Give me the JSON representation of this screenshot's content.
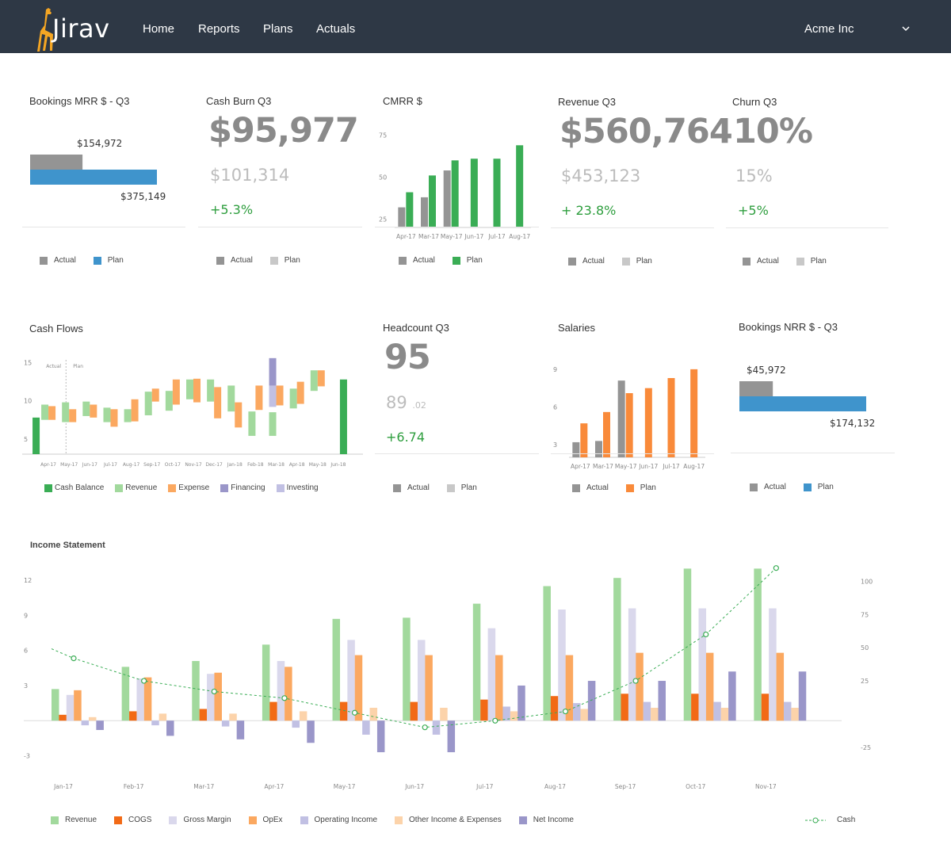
{
  "app": {
    "name": "Jirav",
    "company": "Acme Inc"
  },
  "nav": {
    "items": [
      "Home",
      "Reports",
      "Plans",
      "Actuals"
    ]
  },
  "colors": {
    "nav_bg": "#2e3845",
    "actual": "#949494",
    "plan_blue": "#3f94cc",
    "plan_light": "#c8c8c8",
    "green": "#3aad55",
    "orange": "#f98a3a",
    "delta": "#2e9e3e"
  },
  "cards": {
    "bookings_mrr": {
      "title": "Bookings MRR $ - Q3",
      "actual": "$154,972",
      "plan": "$375,149",
      "legend": [
        "Actual",
        "Plan"
      ]
    },
    "cash_burn": {
      "title": "Cash Burn Q3",
      "value": "$95,977",
      "plan": "$101,314",
      "delta": "+5.3%",
      "legend": [
        "Actual",
        "Plan"
      ]
    },
    "cmrr": {
      "title": "CMRR $",
      "legend": [
        "Actual",
        "Plan"
      ]
    },
    "revenue": {
      "title": "Revenue Q3",
      "value": "$560,764",
      "plan": "$453,123",
      "delta": "+ 23.8%",
      "legend": [
        "Actual",
        "Plan"
      ]
    },
    "churn": {
      "title": "Churn Q3",
      "value": "10%",
      "plan": "15%",
      "delta": "+5%",
      "legend": [
        "Actual",
        "Plan"
      ]
    },
    "cash_flows": {
      "title": "Cash Flows",
      "actual_marker": "Actual",
      "plan_marker": "Plan",
      "legend": [
        "Cash Balance",
        "Revenue",
        "Expense",
        "Financing",
        "Investing"
      ]
    },
    "headcount": {
      "title": "Headcount Q3",
      "value": "95",
      "plan": "89",
      "plan_suffix": ".02",
      "delta": "+6.74",
      "legend": [
        "Actual",
        "Plan"
      ]
    },
    "salaries": {
      "title": "Salaries",
      "legend": [
        "Actual",
        "Plan"
      ]
    },
    "bookings_nrr": {
      "title": "Bookings NRR $ - Q3",
      "actual": "$45,972",
      "plan": "$174,132",
      "legend": [
        "Actual",
        "Plan"
      ]
    },
    "income_statement": {
      "title": "Income Statement",
      "legend": [
        "Revenue",
        "COGS",
        "Gross Margin",
        "OpEx",
        "Operating Income",
        "Other Income & Expenses",
        "Net Income"
      ],
      "cash_legend": "Cash"
    }
  },
  "chart_data": [
    {
      "id": "bookings_mrr",
      "type": "bar",
      "orientation": "horizontal",
      "categories": [
        "Actual",
        "Plan"
      ],
      "values": [
        154972,
        375149
      ],
      "title": "Bookings MRR $ - Q3"
    },
    {
      "id": "cmrr",
      "type": "bar",
      "title": "CMRR $",
      "categories": [
        "Apr-17",
        "Mar-17",
        "May-17",
        "Jun-17",
        "Jul-17",
        "Aug-17"
      ],
      "yticks": [
        "25",
        "50",
        "75"
      ],
      "ylim": [
        20,
        80
      ],
      "series": [
        {
          "name": "Actual",
          "values": [
            32,
            38,
            54,
            null,
            null,
            null
          ]
        },
        {
          "name": "Plan",
          "values": [
            41,
            51,
            60,
            61,
            61,
            69
          ]
        }
      ]
    },
    {
      "id": "cash_flows",
      "type": "bar",
      "subtype": "waterfall",
      "title": "Cash Flows",
      "ylim": [
        3,
        16
      ],
      "yticks": [
        "5",
        "10",
        "15"
      ],
      "categories": [
        "Apr-17",
        "May-17",
        "Jun-17",
        "Jul-17",
        "Aug-17",
        "Sep-17",
        "Oct-17",
        "Nov-17",
        "Dec-17",
        "Jan-18",
        "Feb-18",
        "Mar-18",
        "Apr-18",
        "May-18",
        "Jun-18"
      ],
      "series": [
        {
          "name": "Cash Balance",
          "values": [
            7.8,
            null,
            null,
            null,
            null,
            null,
            null,
            null,
            null,
            null,
            null,
            null,
            null,
            null,
            12.8
          ]
        },
        {
          "name": "Revenue",
          "values": [
            [
              7.5,
              9.5
            ],
            [
              7.2,
              9.8
            ],
            [
              8.0,
              9.9
            ],
            [
              7.2,
              9.1
            ],
            [
              7.2,
              8.9
            ],
            [
              8.1,
              11.2
            ],
            [
              8.7,
              11.3
            ],
            [
              10.2,
              12.8
            ],
            [
              9.9,
              12.8
            ],
            [
              8.6,
              12.0
            ],
            [
              5.4,
              8.6
            ],
            [
              5.4,
              8.5
            ],
            [
              9.0,
              11.6
            ],
            [
              11.3,
              14.0
            ],
            null
          ]
        },
        {
          "name": "Expense",
          "values": [
            [
              7.5,
              9.3
            ],
            [
              7.2,
              8.9
            ],
            [
              7.8,
              9.5
            ],
            [
              6.6,
              8.9
            ],
            [
              7.3,
              10.2
            ],
            [
              9.9,
              11.6
            ],
            [
              9.5,
              12.8
            ],
            [
              9.8,
              12.9
            ],
            [
              7.7,
              11.8
            ],
            [
              6.5,
              9.8
            ],
            [
              8.8,
              12.0
            ],
            [
              9.4,
              12.0
            ],
            [
              9.6,
              12.5
            ],
            [
              11.9,
              14.0
            ],
            null
          ]
        },
        {
          "name": "Financing",
          "values": [
            null,
            null,
            null,
            null,
            null,
            null,
            null,
            null,
            null,
            null,
            null,
            [
              12.0,
              15.6
            ],
            null,
            null,
            null
          ]
        },
        {
          "name": "Investing",
          "values": [
            null,
            null,
            null,
            null,
            null,
            null,
            null,
            null,
            null,
            null,
            null,
            [
              9.2,
              12.0
            ],
            null,
            null,
            null
          ]
        }
      ]
    },
    {
      "id": "salaries",
      "type": "bar",
      "title": "Salaries",
      "categories": [
        "Apr-17",
        "Mar-17",
        "May-17",
        "Jun-17",
        "Jul-17",
        "Aug-17"
      ],
      "yticks": [
        "3",
        "6",
        "9"
      ],
      "ylim": [
        2,
        10
      ],
      "series": [
        {
          "name": "Actual",
          "values": [
            3.2,
            3.3,
            8.1,
            null,
            null,
            null
          ]
        },
        {
          "name": "Plan",
          "values": [
            4.7,
            5.6,
            7.1,
            7.5,
            8.3,
            9.0
          ]
        }
      ]
    },
    {
      "id": "bookings_nrr",
      "type": "bar",
      "orientation": "horizontal",
      "categories": [
        "Actual",
        "Plan"
      ],
      "values": [
        45972,
        174132
      ],
      "title": "Bookings NRR $ - Q3"
    },
    {
      "id": "income_statement",
      "type": "bar",
      "title": "Income Statement",
      "categories": [
        "Jan-17",
        "Feb-17",
        "Mar-17",
        "Apr-17",
        "May-17",
        "Jun-17",
        "Jul-17",
        "Aug-17",
        "Sep-17",
        "Oct-17",
        "Nov-17"
      ],
      "yticks_left": [
        "-3",
        "3",
        "6",
        "9",
        "12"
      ],
      "yticks_right": [
        "-25",
        "25",
        "50",
        "75",
        "100"
      ],
      "ylim_left": [
        -5,
        13.5
      ],
      "ylim_right": [
        -49,
        114
      ],
      "series": [
        {
          "name": "Revenue",
          "values": [
            2.7,
            4.6,
            5.1,
            6.5,
            8.7,
            8.8,
            10.0,
            11.5,
            12.2,
            13.0,
            13.0
          ]
        },
        {
          "name": "COGS",
          "values": [
            0.5,
            0.8,
            1.0,
            1.6,
            1.6,
            1.6,
            1.8,
            2.1,
            2.3,
            2.3,
            2.3
          ]
        },
        {
          "name": "Gross Margin",
          "values": [
            2.2,
            3.6,
            4.0,
            5.1,
            6.9,
            6.9,
            7.9,
            9.5,
            9.6,
            9.6,
            9.6
          ]
        },
        {
          "name": "OpEx",
          "values": [
            2.6,
            3.7,
            4.1,
            4.6,
            5.6,
            5.6,
            5.6,
            5.6,
            5.8,
            5.8,
            5.8
          ]
        },
        {
          "name": "Operating Income",
          "values": [
            -0.4,
            -0.4,
            -0.5,
            -0.6,
            -1.2,
            -1.2,
            1.2,
            1.5,
            1.6,
            1.6,
            1.6
          ]
        },
        {
          "name": "Other Income & Expenses",
          "values": [
            0.3,
            0.6,
            0.6,
            0.8,
            1.1,
            1.1,
            0.8,
            1.0,
            1.1,
            1.1,
            1.1
          ]
        },
        {
          "name": "Net Income",
          "values": [
            -0.8,
            -1.3,
            -1.6,
            -1.9,
            -2.7,
            -2.7,
            3.0,
            3.4,
            3.4,
            4.2,
            4.2
          ]
        },
        {
          "name": "Cash",
          "axis": "right",
          "type": "line",
          "values": [
            42,
            25,
            17,
            12,
            1,
            -10,
            -5,
            2,
            25,
            60,
            110
          ]
        }
      ]
    }
  ]
}
